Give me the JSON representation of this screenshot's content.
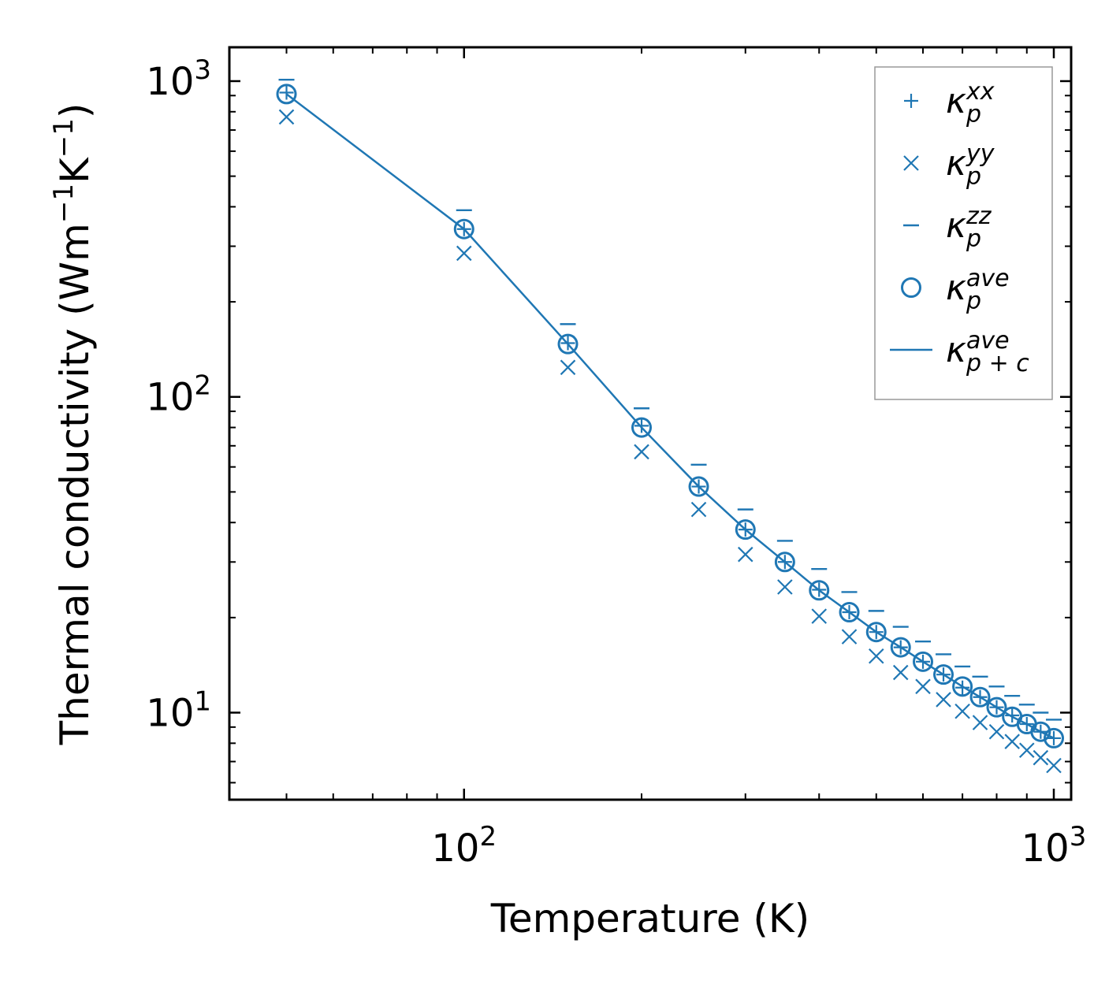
{
  "chart_data": {
    "type": "scatter",
    "title": "",
    "xlabel": "Temperature (K)",
    "ylabel": "Thermal conductivity (Wm",
    "ylabel_sup1": "−1",
    "ylabel_mid": "K",
    "ylabel_sup2": "−1",
    "ylabel_end": ")",
    "xscale": "log",
    "yscale": "log",
    "xlim": [
      40,
      1070
    ],
    "ylim": [
      5.3,
      1280
    ],
    "color": "#1f77b4",
    "x_major_ticks": [
      {
        "value": 100,
        "base": "10",
        "exp": "2"
      },
      {
        "value": 1000,
        "base": "10",
        "exp": "3"
      }
    ],
    "y_major_ticks": [
      {
        "value": 10,
        "base": "10",
        "exp": "1"
      },
      {
        "value": 100,
        "base": "10",
        "exp": "2"
      },
      {
        "value": 1000,
        "base": "10",
        "exp": "3"
      }
    ],
    "legend_position": "upper right",
    "x": [
      50,
      100,
      150,
      200,
      250,
      300,
      350,
      400,
      450,
      500,
      550,
      600,
      650,
      700,
      750,
      800,
      850,
      900,
      950,
      1000
    ],
    "series": [
      {
        "name": "kxx",
        "label_base": "κ",
        "label_sub": "p",
        "label_sup": "xx",
        "marker": "plus",
        "values": [
          920,
          340,
          148,
          81,
          52,
          38,
          30,
          24.5,
          20.8,
          18.0,
          16.1,
          14.5,
          13.2,
          12.0,
          11.2,
          10.4,
          9.8,
          9.2,
          8.7,
          8.3
        ]
      },
      {
        "name": "kyy",
        "label_base": "κ",
        "label_sub": "p",
        "label_sup": "yy",
        "marker": "x",
        "values": [
          770,
          285,
          124,
          67,
          44,
          31.7,
          25,
          20.2,
          17.4,
          15.1,
          13.4,
          12.1,
          11.0,
          10.1,
          9.3,
          8.7,
          8.1,
          7.6,
          7.2,
          6.8
        ]
      },
      {
        "name": "kzz",
        "label_base": "κ",
        "label_sub": "p",
        "label_sup": "zz",
        "marker": "hline",
        "values": [
          1010,
          390,
          170,
          92,
          61,
          44,
          35,
          28.5,
          24.1,
          21.0,
          18.7,
          16.8,
          15.3,
          14.0,
          13.0,
          12.1,
          11.3,
          10.6,
          10.0,
          9.5
        ]
      },
      {
        "name": "kave",
        "label_base": "κ",
        "label_sub": "p",
        "label_sup": "ave",
        "marker": "circle",
        "values": [
          910,
          340,
          147,
          80,
          52,
          38,
          30,
          24.4,
          20.8,
          18.0,
          16.1,
          14.5,
          13.2,
          12.1,
          11.2,
          10.4,
          9.7,
          9.2,
          8.7,
          8.3
        ]
      },
      {
        "name": "kavepc",
        "label_base": "κ",
        "label_sub": "p + c",
        "label_sup": "ave",
        "marker": "line",
        "values": [
          910,
          340,
          147,
          80,
          52,
          38,
          30,
          24.4,
          20.8,
          18.0,
          16.1,
          14.5,
          13.2,
          12.1,
          11.2,
          10.4,
          9.7,
          9.2,
          8.7,
          8.3
        ]
      }
    ]
  }
}
